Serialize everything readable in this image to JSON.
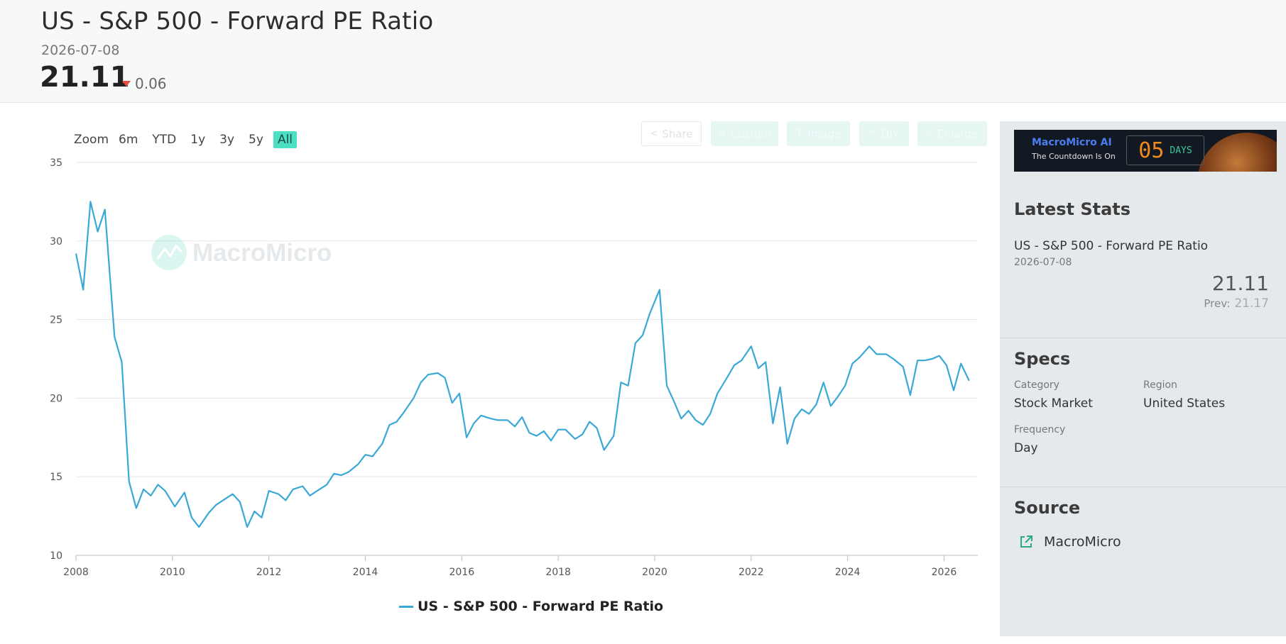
{
  "header": {
    "title": "US - S&P 500 - Forward PE Ratio",
    "date": "2026-07-08",
    "value": "21.11",
    "change": "0.06",
    "change_color": "#e74c3c"
  },
  "zoom": {
    "label": "Zoom",
    "buttons": [
      "6m",
      "YTD",
      "1y",
      "3y",
      "5y",
      "All"
    ],
    "active": "All",
    "active_color": "#4bdfc4"
  },
  "toolbar": {
    "share": "Share",
    "custom": "Custom",
    "image": "Image",
    "diy": "DIY",
    "enlarge": "Enlarge"
  },
  "watermark": "MacroMicro",
  "banner": {
    "brand": "MacroMicro AI",
    "tagline": "The Countdown Is On",
    "count": "05",
    "unit": "DAYS"
  },
  "sidebar": {
    "latest_heading": "Latest Stats",
    "series_name": "US - S&P 500 - Forward PE Ratio",
    "date": "2026-07-08",
    "value": "21.11",
    "prev_label": "Prev:",
    "prev_value": "21.17",
    "specs_heading": "Specs",
    "category_label": "Category",
    "category_value": "Stock Market",
    "region_label": "Region",
    "region_value": "United States",
    "frequency_label": "Frequency",
    "frequency_value": "Day",
    "source_heading": "Source",
    "source_value": "MacroMicro"
  },
  "chart_data": {
    "type": "line",
    "title": "",
    "xlabel": "",
    "ylabel": "",
    "ylim": [
      10,
      35
    ],
    "yticks": [
      10,
      15,
      20,
      25,
      30,
      35
    ],
    "xlim": [
      2008,
      2026.7
    ],
    "xticks": [
      "2008",
      "2010",
      "2012",
      "2014",
      "2016",
      "2018",
      "2020",
      "2022",
      "2024",
      "2026"
    ],
    "grid": true,
    "legend": "bottom-center",
    "series": [
      {
        "name": "US - S&P 500 - Forward PE Ratio",
        "color": "#3aa8d6",
        "points": [
          [
            2008.0,
            29.2
          ],
          [
            2008.15,
            26.9
          ],
          [
            2008.3,
            32.5
          ],
          [
            2008.45,
            30.6
          ],
          [
            2008.6,
            32.0
          ],
          [
            2008.8,
            23.9
          ],
          [
            2008.95,
            22.3
          ],
          [
            2009.1,
            14.7
          ],
          [
            2009.25,
            13.0
          ],
          [
            2009.4,
            14.2
          ],
          [
            2009.55,
            13.8
          ],
          [
            2009.7,
            14.5
          ],
          [
            2009.85,
            14.1
          ],
          [
            2010.05,
            13.1
          ],
          [
            2010.25,
            14.0
          ],
          [
            2010.4,
            12.4
          ],
          [
            2010.55,
            11.8
          ],
          [
            2010.75,
            12.7
          ],
          [
            2010.9,
            13.2
          ],
          [
            2011.1,
            13.6
          ],
          [
            2011.25,
            13.9
          ],
          [
            2011.4,
            13.4
          ],
          [
            2011.55,
            11.8
          ],
          [
            2011.7,
            12.8
          ],
          [
            2011.85,
            12.4
          ],
          [
            2012.0,
            14.1
          ],
          [
            2012.2,
            13.9
          ],
          [
            2012.35,
            13.5
          ],
          [
            2012.5,
            14.2
          ],
          [
            2012.7,
            14.4
          ],
          [
            2012.85,
            13.8
          ],
          [
            2013.0,
            14.1
          ],
          [
            2013.2,
            14.5
          ],
          [
            2013.35,
            15.2
          ],
          [
            2013.5,
            15.1
          ],
          [
            2013.65,
            15.3
          ],
          [
            2013.85,
            15.8
          ],
          [
            2014.0,
            16.4
          ],
          [
            2014.15,
            16.3
          ],
          [
            2014.35,
            17.1
          ],
          [
            2014.5,
            18.3
          ],
          [
            2014.65,
            18.5
          ],
          [
            2014.8,
            19.1
          ],
          [
            2015.0,
            20.0
          ],
          [
            2015.15,
            21.0
          ],
          [
            2015.3,
            21.5
          ],
          [
            2015.5,
            21.6
          ],
          [
            2015.65,
            21.3
          ],
          [
            2015.8,
            19.7
          ],
          [
            2015.95,
            20.3
          ],
          [
            2016.1,
            17.5
          ],
          [
            2016.25,
            18.4
          ],
          [
            2016.4,
            18.9
          ],
          [
            2016.6,
            18.7
          ],
          [
            2016.75,
            18.6
          ],
          [
            2016.95,
            18.6
          ],
          [
            2017.1,
            18.2
          ],
          [
            2017.25,
            18.8
          ],
          [
            2017.4,
            17.8
          ],
          [
            2017.55,
            17.6
          ],
          [
            2017.7,
            17.9
          ],
          [
            2017.85,
            17.3
          ],
          [
            2018.0,
            18.0
          ],
          [
            2018.15,
            18.0
          ],
          [
            2018.35,
            17.4
          ],
          [
            2018.5,
            17.7
          ],
          [
            2018.65,
            18.5
          ],
          [
            2018.8,
            18.1
          ],
          [
            2018.95,
            16.7
          ],
          [
            2019.15,
            17.6
          ],
          [
            2019.3,
            21.0
          ],
          [
            2019.45,
            20.8
          ],
          [
            2019.6,
            23.5
          ],
          [
            2019.75,
            24.0
          ],
          [
            2019.9,
            25.4
          ],
          [
            2020.1,
            26.9
          ],
          [
            2020.25,
            20.8
          ],
          [
            2020.4,
            19.8
          ],
          [
            2020.55,
            18.7
          ],
          [
            2020.7,
            19.2
          ],
          [
            2020.85,
            18.6
          ],
          [
            2021.0,
            18.3
          ],
          [
            2021.15,
            19.0
          ],
          [
            2021.3,
            20.3
          ],
          [
            2021.5,
            21.3
          ],
          [
            2021.65,
            22.1
          ],
          [
            2021.8,
            22.4
          ],
          [
            2022.0,
            23.3
          ],
          [
            2022.15,
            21.9
          ],
          [
            2022.3,
            22.3
          ],
          [
            2022.45,
            18.4
          ],
          [
            2022.6,
            20.7
          ],
          [
            2022.75,
            17.1
          ],
          [
            2022.9,
            18.7
          ],
          [
            2023.05,
            19.3
          ],
          [
            2023.2,
            19.0
          ],
          [
            2023.35,
            19.6
          ],
          [
            2023.5,
            21.0
          ],
          [
            2023.65,
            19.5
          ],
          [
            2023.8,
            20.1
          ],
          [
            2023.95,
            20.8
          ],
          [
            2024.1,
            22.2
          ],
          [
            2024.25,
            22.6
          ],
          [
            2024.45,
            23.3
          ],
          [
            2024.6,
            22.8
          ],
          [
            2024.8,
            22.8
          ],
          [
            2024.95,
            22.5
          ],
          [
            2025.15,
            22.0
          ],
          [
            2025.3,
            20.2
          ],
          [
            2025.45,
            22.4
          ],
          [
            2025.6,
            22.4
          ],
          [
            2025.75,
            22.5
          ],
          [
            2025.9,
            22.7
          ],
          [
            2026.05,
            22.1
          ],
          [
            2026.2,
            20.5
          ],
          [
            2026.35,
            22.2
          ],
          [
            2026.52,
            21.11
          ]
        ]
      }
    ]
  }
}
